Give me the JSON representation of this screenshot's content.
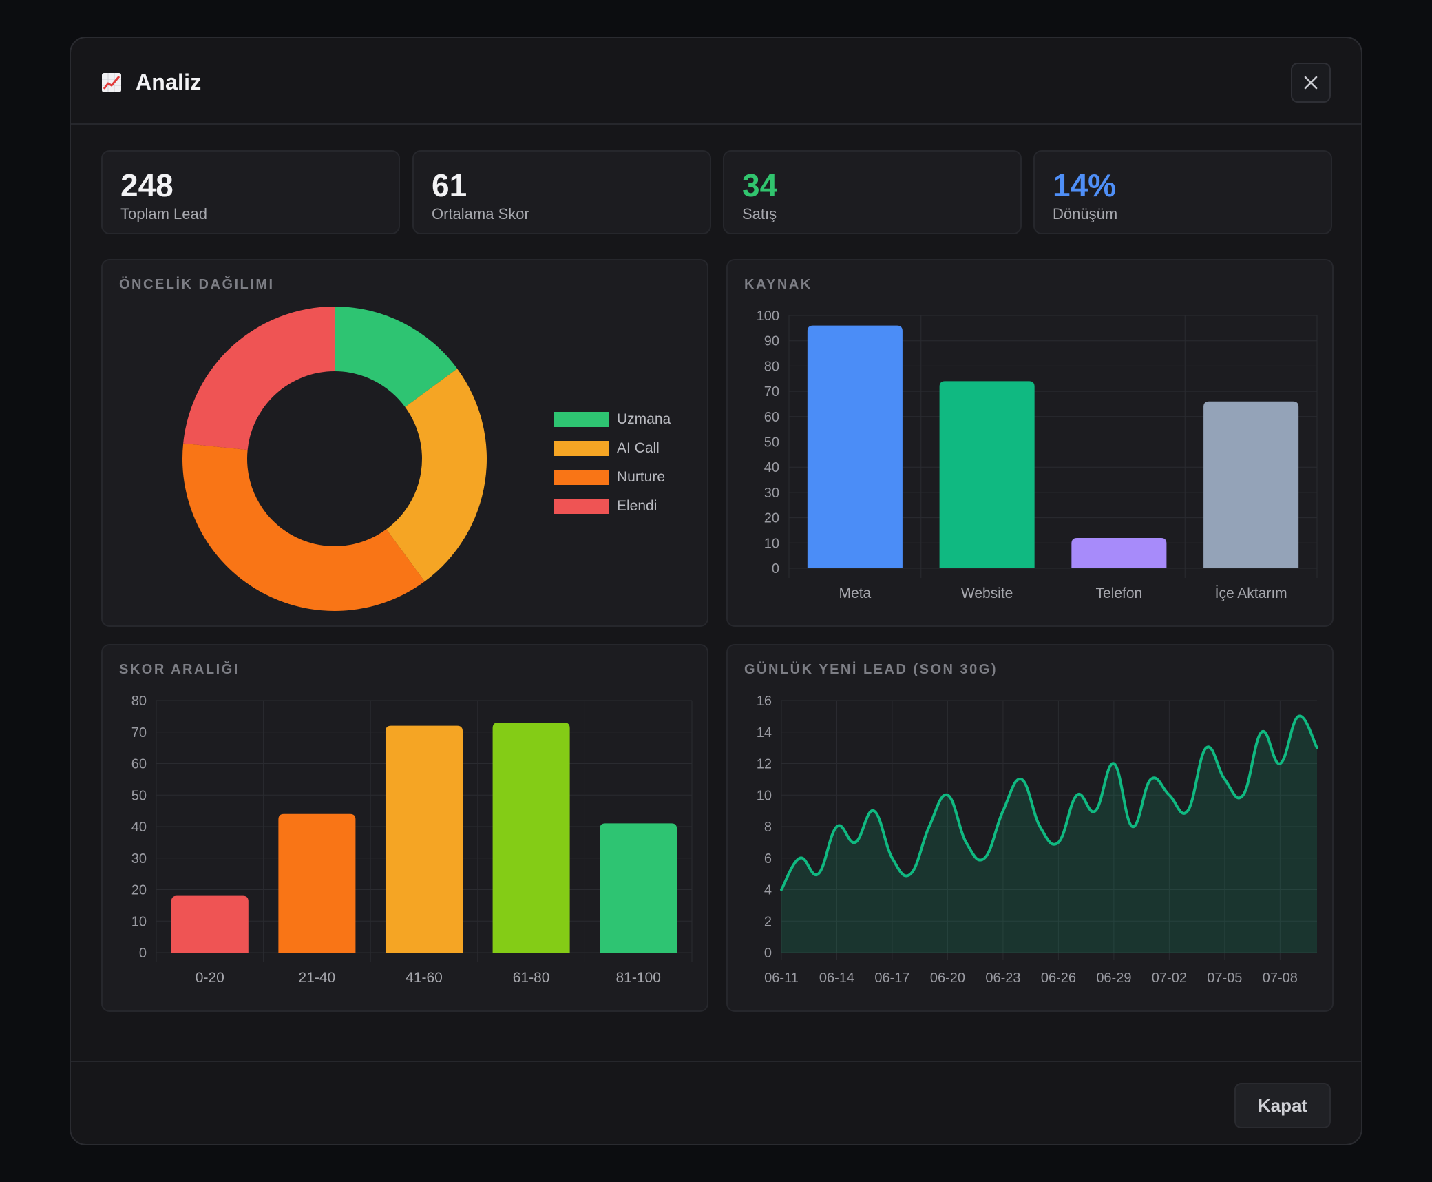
{
  "header": {
    "title": "Analiz",
    "icon": "chart-increasing-icon"
  },
  "stats": [
    {
      "value": "248",
      "label": "Toplam Lead",
      "color": "#f2f2f4"
    },
    {
      "value": "61",
      "label": "Ortalama Skor",
      "color": "#f2f2f4"
    },
    {
      "value": "34",
      "label": "Satış",
      "color": "#31c46e"
    },
    {
      "value": "14%",
      "label": "Dönüşüm",
      "color": "#4f8ff7"
    }
  ],
  "footer": {
    "close_label": "Kapat"
  },
  "chart_data": [
    {
      "type": "pie",
      "title": "ÖNCELİK DAĞILIMI",
      "donut": true,
      "legend_position": "right",
      "categories": [
        "Uzmana",
        "AI Call",
        "Nurture",
        "Elendi"
      ],
      "values": [
        37,
        62,
        91,
        58
      ],
      "colors": [
        "#2ec472",
        "#f5a524",
        "#f97516",
        "#ef5454"
      ]
    },
    {
      "type": "bar",
      "title": "KAYNAK",
      "categories": [
        "Meta",
        "Website",
        "Telefon",
        "İçe Aktarım"
      ],
      "values": [
        96,
        74,
        12,
        66
      ],
      "colors": [
        "#4b8df7",
        "#10b981",
        "#a78bfa",
        "#94a3b8"
      ],
      "ylim": [
        0,
        100
      ],
      "yticks": [
        0,
        10,
        20,
        30,
        40,
        50,
        60,
        70,
        80,
        90,
        100
      ],
      "grid": true
    },
    {
      "type": "bar",
      "title": "SKOR ARALIĞI",
      "categories": [
        "0-20",
        "21-40",
        "41-60",
        "61-80",
        "81-100"
      ],
      "values": [
        18,
        44,
        72,
        73,
        41
      ],
      "colors": [
        "#ef5454",
        "#f97516",
        "#f5a524",
        "#84cc16",
        "#2ec472"
      ],
      "ylim": [
        0,
        80
      ],
      "yticks": [
        0,
        10,
        20,
        30,
        40,
        50,
        60,
        70,
        80
      ],
      "grid": true
    },
    {
      "type": "area",
      "title": "GÜNLÜK YENİ LEAD (SON 30G)",
      "x": [
        "06-11",
        "06-12",
        "06-13",
        "06-14",
        "06-15",
        "06-16",
        "06-17",
        "06-18",
        "06-19",
        "06-20",
        "06-21",
        "06-22",
        "06-23",
        "06-24",
        "06-25",
        "06-26",
        "06-27",
        "06-28",
        "06-29",
        "06-30",
        "07-01",
        "07-02",
        "07-03",
        "07-04",
        "07-05",
        "07-06",
        "07-07",
        "07-08",
        "07-09",
        "07-10"
      ],
      "xticks": [
        "06-11",
        "06-14",
        "06-17",
        "06-20",
        "06-23",
        "06-26",
        "06-29",
        "07-02",
        "07-05",
        "07-08"
      ],
      "values": [
        4,
        6,
        5,
        8,
        7,
        9,
        6,
        5,
        8,
        10,
        7,
        6,
        9,
        11,
        8,
        7,
        10,
        9,
        12,
        8,
        11,
        10,
        9,
        13,
        11,
        10,
        14,
        12,
        15,
        13
      ],
      "ylim": [
        0,
        16
      ],
      "yticks": [
        0,
        2,
        4,
        6,
        8,
        10,
        12,
        14,
        16
      ],
      "color": "#10b981",
      "grid": true
    }
  ]
}
